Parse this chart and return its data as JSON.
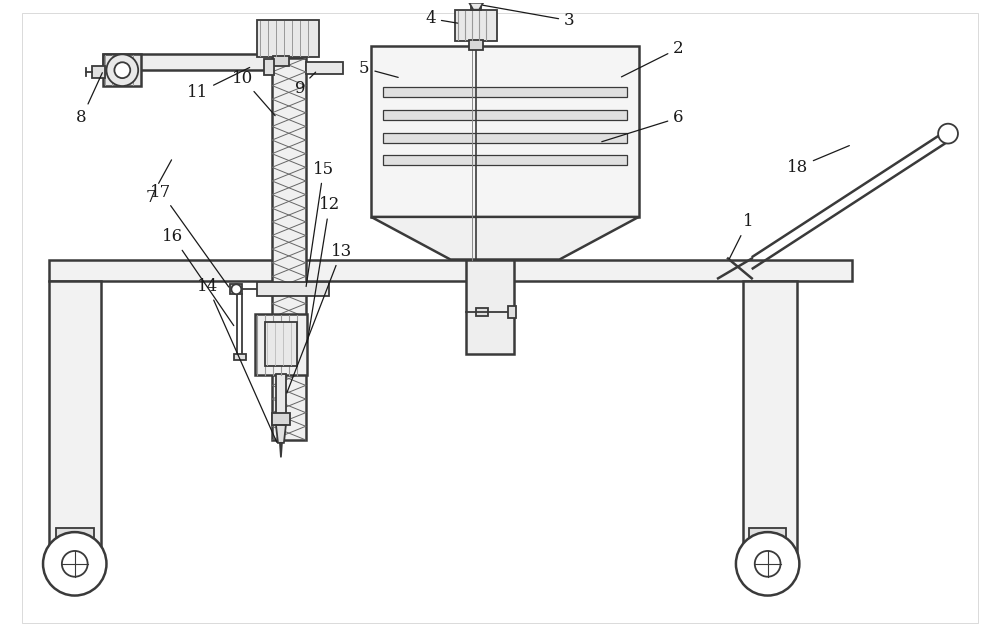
{
  "bg_color": "#ffffff",
  "lc": "#3a3a3a",
  "lc2": "#555555",
  "figsize": [
    10.0,
    6.36
  ],
  "dpi": 100
}
